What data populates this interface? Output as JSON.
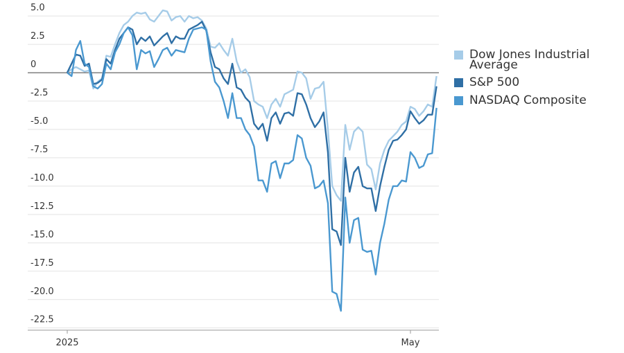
{
  "chart_data": {
    "type": "line",
    "categories": [
      "2025",
      null,
      null,
      null,
      null,
      null,
      null,
      null,
      null,
      null,
      null,
      null,
      null,
      null,
      null,
      null,
      null,
      null,
      null,
      null,
      null,
      null,
      null,
      null,
      null,
      null,
      null,
      null,
      null,
      null,
      null,
      null,
      null,
      null,
      null,
      null,
      null,
      null,
      null,
      null,
      null,
      null,
      null,
      null,
      null,
      null,
      null,
      null,
      null,
      null,
      null,
      null,
      null,
      null,
      null,
      null,
      null,
      null,
      null,
      null,
      null,
      null,
      null,
      null,
      null,
      null,
      null,
      null,
      null,
      null,
      null,
      null,
      null,
      null,
      null,
      null,
      null,
      null,
      null,
      "May",
      null,
      null,
      null,
      null,
      null,
      null
    ],
    "series": [
      {
        "name": "Dow Jones Industrial Average",
        "color": "#a6cce8",
        "values": [
          0,
          0.3,
          0.5,
          0.3,
          0.1,
          0.2,
          -1.4,
          -0.8,
          -0.5,
          1.5,
          1.4,
          2.5,
          3.5,
          4.2,
          4.5,
          5.0,
          5.3,
          5.2,
          5.3,
          4.7,
          4.5,
          5.0,
          5.5,
          5.4,
          4.6,
          4.9,
          5.0,
          4.5,
          5.0,
          4.8,
          4.9,
          4.6,
          3.9,
          2.3,
          2.2,
          2.6,
          2.0,
          1.5,
          3.0,
          1.0,
          0.0,
          0.3,
          -0.4,
          -2.5,
          -2.8,
          -3.0,
          -4.0,
          -2.8,
          -2.3,
          -3.0,
          -1.9,
          -1.7,
          -1.5,
          0.1,
          0.0,
          -0.5,
          -2.3,
          -1.4,
          -1.3,
          -0.8,
          -5.0,
          -10.0,
          -10.8,
          -11.3,
          -4.6,
          -6.8,
          -5.2,
          -4.8,
          -5.2,
          -8.1,
          -8.5,
          -10.3,
          -8.0,
          -6.8,
          -6.0,
          -5.6,
          -5.2,
          -4.6,
          -4.3,
          -3.0,
          -3.2,
          -3.8,
          -3.4,
          -2.8,
          -3.0,
          -0.3
        ]
      },
      {
        "name": "S&P 500",
        "color": "#2f6fa5",
        "values": [
          0,
          0.8,
          1.6,
          1.5,
          0.6,
          0.8,
          -1.0,
          -0.9,
          -0.6,
          1.2,
          0.8,
          2.0,
          3.0,
          3.5,
          4.0,
          3.8,
          2.5,
          3.1,
          2.8,
          3.2,
          2.4,
          2.8,
          3.2,
          3.5,
          2.6,
          3.2,
          3.0,
          3.0,
          3.8,
          4.0,
          4.2,
          4.5,
          3.7,
          1.8,
          0.5,
          0.3,
          -0.5,
          -1.0,
          0.8,
          -1.3,
          -1.5,
          -2.2,
          -2.6,
          -4.5,
          -5.0,
          -4.5,
          -6.0,
          -4.0,
          -3.5,
          -4.5,
          -3.6,
          -3.5,
          -3.8,
          -1.8,
          -1.9,
          -2.8,
          -4.0,
          -4.8,
          -4.3,
          -3.5,
          -7.0,
          -13.8,
          -14.0,
          -15.2,
          -7.5,
          -10.5,
          -8.8,
          -8.3,
          -10.0,
          -10.2,
          -10.2,
          -12.2,
          -10.0,
          -8.3,
          -6.8,
          -6.0,
          -5.9,
          -5.5,
          -5.0,
          -3.4,
          -4.0,
          -4.5,
          -4.2,
          -3.7,
          -3.7,
          -1.2
        ]
      },
      {
        "name": "NASDAQ Composite",
        "color": "#4a98d0",
        "values": [
          0,
          -0.3,
          2.0,
          2.8,
          0.8,
          0.5,
          -1.2,
          -1.4,
          -1.0,
          0.8,
          0.3,
          1.8,
          2.5,
          3.5,
          4.0,
          3.3,
          0.3,
          2.0,
          1.7,
          1.9,
          0.5,
          1.2,
          2.0,
          2.2,
          1.5,
          2.0,
          1.9,
          1.8,
          3.0,
          3.8,
          3.9,
          4.0,
          3.8,
          1.0,
          -0.8,
          -1.3,
          -2.5,
          -4.0,
          -1.8,
          -4.0,
          -4.0,
          -5.0,
          -5.5,
          -6.5,
          -9.5,
          -9.5,
          -10.5,
          -8.0,
          -7.8,
          -9.3,
          -8.0,
          -8.0,
          -7.7,
          -5.5,
          -5.8,
          -7.5,
          -8.2,
          -10.2,
          -10.0,
          -9.5,
          -11.5,
          -19.3,
          -19.5,
          -21.0,
          -11.0,
          -15.0,
          -13.0,
          -12.8,
          -15.6,
          -15.8,
          -15.7,
          -17.8,
          -15.0,
          -13.3,
          -11.2,
          -10.0,
          -10.0,
          -9.5,
          -9.6,
          -7.0,
          -7.5,
          -8.4,
          -8.2,
          -7.2,
          -7.1,
          -3.1
        ]
      }
    ],
    "ylim": [
      -22.7,
      5.8
    ],
    "yticks": [
      {
        "value": 5,
        "label": "5.0"
      },
      2.5,
      0,
      -2.5,
      {
        "value": -5,
        "label": "-5.0"
      },
      -7.5,
      {
        "value": -10,
        "label": "-10.0"
      },
      -12.5,
      {
        "value": -15,
        "label": "-15.0"
      },
      -17.5,
      {
        "value": -20,
        "label": "-20.0"
      },
      -22.5
    ],
    "grid": true
  }
}
